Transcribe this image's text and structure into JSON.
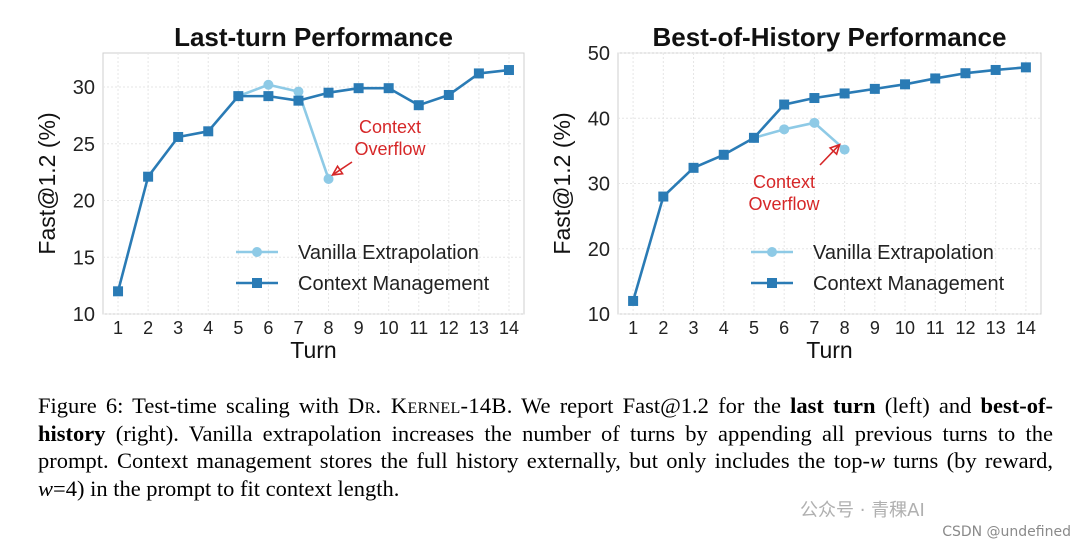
{
  "chart_data": [
    {
      "type": "line",
      "title": "Last-turn Performance",
      "xlabel": "Turn",
      "ylabel": "Fast@1.2 (%)",
      "x": [
        1,
        2,
        3,
        4,
        5,
        6,
        7,
        8,
        9,
        10,
        11,
        12,
        13,
        14
      ],
      "xlim": [
        0.5,
        14.5
      ],
      "ylim": [
        10,
        33
      ],
      "yticks": [
        10,
        15,
        20,
        25,
        30
      ],
      "grid": true,
      "legend_position": "lower-right",
      "series": [
        {
          "name": "Vanilla Extrapolation",
          "marker": "circle",
          "color": "#8ecae6",
          "x": [
            5,
            6,
            7,
            8
          ],
          "values": [
            29.2,
            30.2,
            29.6,
            21.9
          ]
        },
        {
          "name": "Context Management",
          "marker": "square",
          "color": "#2a7bb5",
          "x": [
            1,
            2,
            3,
            4,
            5,
            6,
            7,
            8,
            9,
            10,
            11,
            12,
            13,
            14
          ],
          "values": [
            12.0,
            22.1,
            25.6,
            26.1,
            29.2,
            29.2,
            28.8,
            29.5,
            29.9,
            29.9,
            28.4,
            29.3,
            31.2,
            31.5
          ]
        }
      ],
      "annotation": {
        "text_lines": [
          "Context",
          "Overflow"
        ],
        "color": "#d62728",
        "x": 8,
        "y": 21.9
      }
    },
    {
      "type": "line",
      "title": "Best-of-History Performance",
      "xlabel": "Turn",
      "ylabel": "Fast@1.2 (%)",
      "x": [
        1,
        2,
        3,
        4,
        5,
        6,
        7,
        8,
        9,
        10,
        11,
        12,
        13,
        14
      ],
      "xlim": [
        0.5,
        14.5
      ],
      "ylim": [
        10,
        50
      ],
      "yticks": [
        10,
        20,
        30,
        40,
        50
      ],
      "grid": true,
      "legend_position": "lower-right",
      "series": [
        {
          "name": "Vanilla Extrapolation",
          "marker": "circle",
          "color": "#8ecae6",
          "x": [
            5,
            6,
            7,
            8
          ],
          "values": [
            37.0,
            38.3,
            39.3,
            35.2
          ]
        },
        {
          "name": "Context Management",
          "marker": "square",
          "color": "#2a7bb5",
          "x": [
            1,
            2,
            3,
            4,
            5,
            6,
            7,
            8,
            9,
            10,
            11,
            12,
            13,
            14
          ],
          "values": [
            12.0,
            28.0,
            32.4,
            34.4,
            37.0,
            42.1,
            43.1,
            43.8,
            44.5,
            45.2,
            46.1,
            46.9,
            47.4,
            47.8
          ]
        }
      ],
      "annotation": {
        "text_lines": [
          "Context",
          "Overflow"
        ],
        "color": "#d62728",
        "x": 8,
        "y": 35.2
      }
    }
  ],
  "caption": {
    "part1": "Figure 6: Test-time scaling with ",
    "model": "Dr. Kernel-14B",
    "part2": ". We report Fast@1.2 for the ",
    "bold1": "last turn",
    "part3": " (left) and ",
    "bold2": "best-of-history",
    "part4": " (right). Vanilla extrapolation increases the number of turns by appending all previous turns to the prompt. Context management stores the full history externally, but only includes the top-",
    "w1": "w",
    "part5": " turns (by reward, ",
    "w2": "w",
    "part6": "=4) in the prompt to fit context length."
  },
  "watermark": {
    "logo_text": "公众号 · 青稞AI",
    "text": "CSDN @undefined"
  }
}
